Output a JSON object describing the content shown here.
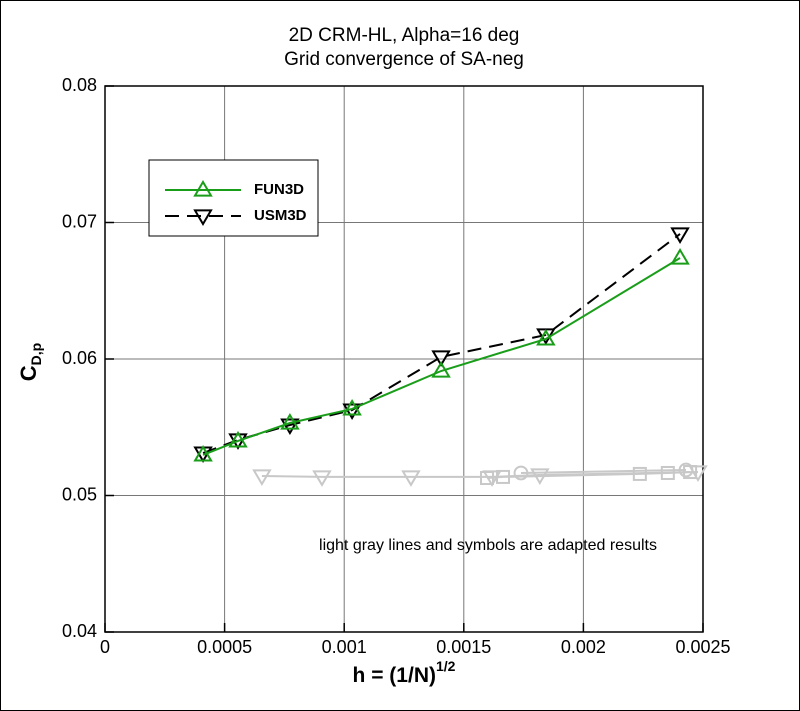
{
  "chart_data": {
    "type": "line",
    "title": [
      "2D CRM-HL, Alpha=16 deg",
      "Grid convergence of SA-neg"
    ],
    "x_label": {
      "main": "h = (1/N)",
      "sup": "1/2"
    },
    "y_label": {
      "main": "C",
      "sub": "D,p"
    },
    "annotation": "light gray lines and symbols are adapted results",
    "xlim": [
      0,
      0.0025
    ],
    "xticks": [
      0,
      0.0005,
      0.001,
      0.0015,
      0.002,
      0.0025
    ],
    "ylim": [
      0.04,
      0.08
    ],
    "yticks": [
      0.04,
      0.05,
      0.06,
      0.07,
      0.08
    ],
    "grid": true,
    "legend": "upper-left",
    "series": [
      {
        "name": "FUN3D",
        "color": "#1a9e1a",
        "marker": "triangle-up",
        "dash": false,
        "x": [
          0.00041,
          0.000556,
          0.000773,
          0.001033,
          0.001405,
          0.001843,
          0.002404
        ],
        "values": [
          0.05297,
          0.054,
          0.05531,
          0.05634,
          0.05912,
          0.06147,
          0.0674
        ]
      },
      {
        "name": "USM3D",
        "color": "#000000",
        "marker": "triangle-down",
        "dash": true,
        "x": [
          0.00041,
          0.000556,
          0.000773,
          0.001033,
          0.001405,
          0.001843,
          0.002404
        ],
        "values": [
          0.05311,
          0.05407,
          0.05516,
          0.05626,
          0.06015,
          0.06176,
          0.06916
        ]
      },
      {
        "color": "#c8c8c8",
        "marker": "triangle-down",
        "dash": false,
        "x": [
          0.000656,
          0.000907,
          0.001279,
          0.001618,
          0.001818,
          0.002479
        ],
        "values": [
          0.05143,
          0.05136,
          0.05136,
          0.05136,
          0.0515,
          0.05172
        ]
      },
      {
        "color": "#c8c8c8",
        "marker": "square",
        "dash": false,
        "x": [
          0.001597,
          0.001664,
          0.002236,
          0.002353,
          0.002446
        ],
        "values": [
          0.05128,
          0.05136,
          0.05158,
          0.05165,
          0.05172
        ]
      },
      {
        "color": "#c8c8c8",
        "marker": "circle",
        "dash": false,
        "x": [
          0.001739,
          0.002429
        ],
        "values": [
          0.05165,
          0.05187
        ]
      }
    ]
  }
}
